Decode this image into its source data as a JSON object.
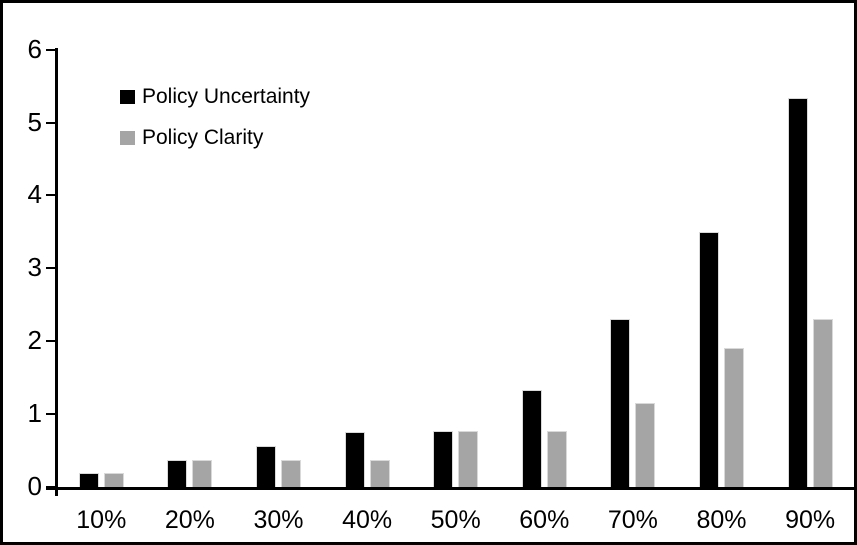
{
  "chart_data": {
    "type": "bar",
    "title": "",
    "xlabel": "",
    "ylabel": "",
    "categories": [
      "10%",
      "20%",
      "30%",
      "40%",
      "50%",
      "60%",
      "70%",
      "80%",
      "90%"
    ],
    "series": [
      {
        "name": "Policy Uncertainty",
        "color": "#000000",
        "values": [
          0.19,
          0.37,
          0.56,
          0.75,
          0.77,
          1.33,
          2.3,
          3.5,
          5.33
        ]
      },
      {
        "name": "Policy Clarity",
        "color": "#a5a5a5",
        "values": [
          0.19,
          0.37,
          0.37,
          0.37,
          0.77,
          0.77,
          1.15,
          1.9,
          2.3
        ]
      }
    ],
    "ylim": [
      0,
      6
    ],
    "yticks": [
      0,
      1,
      2,
      3,
      4,
      5,
      6
    ],
    "grid": false,
    "legend_position": "top-left-inside",
    "axis_color": "#000000",
    "background_color": "#ffffff",
    "frame_border_color": "#000000"
  }
}
